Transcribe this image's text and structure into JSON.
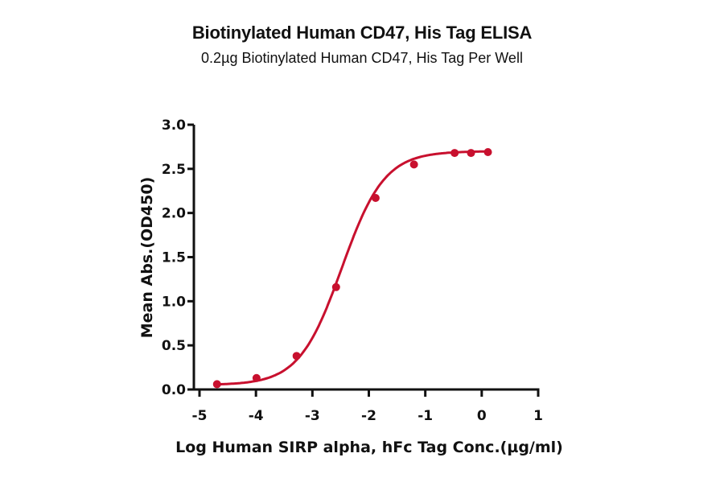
{
  "chart_data": {
    "type": "scatter",
    "title": "Biotinylated Human CD47, His Tag ELISA",
    "subtitle": "0.2µg Biotinylated Human CD47, His Tag Per Well",
    "xlabel": "Log Human SIRP alpha, hFc Tag Conc.(µg/ml)",
    "ylabel": "Mean Abs.(OD450)",
    "xlim": [
      -5,
      1
    ],
    "ylim": [
      0,
      3.0
    ],
    "xticks": [
      "-5",
      "-4",
      "-3",
      "-2",
      "-1",
      "0",
      "1"
    ],
    "yticks": [
      "0.0",
      "0.5",
      "1.0",
      "1.5",
      "2.0",
      "2.5",
      "3.0"
    ],
    "grid": false,
    "legend": null,
    "series": [
      {
        "name": "Human SIRP alpha, hFc Tag",
        "color": "#C8102E",
        "fit": "4PL sigmoidal curve",
        "x": [
          -4.69,
          -3.99,
          -3.28,
          -2.58,
          -1.88,
          -1.2,
          -0.48,
          -0.19,
          0.11
        ],
        "y": [
          0.06,
          0.13,
          0.38,
          1.16,
          2.17,
          2.55,
          2.68,
          2.68,
          2.69
        ]
      }
    ]
  }
}
